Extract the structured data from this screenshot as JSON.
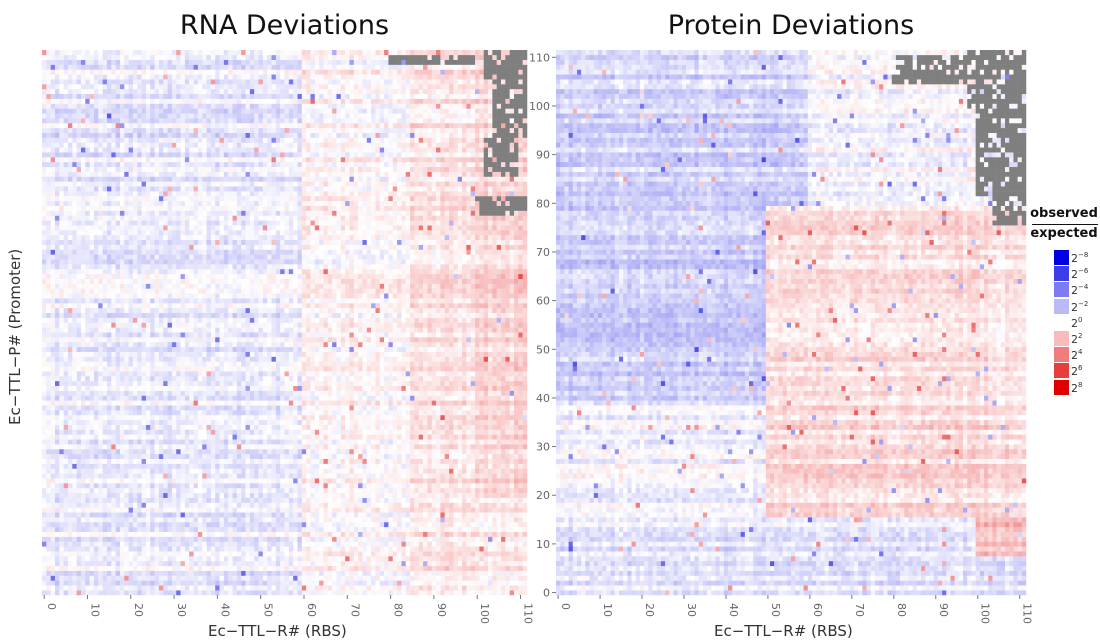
{
  "chart_data": [
    {
      "type": "heatmap",
      "title": "RNA Deviations",
      "xlabel": "Ec−TTL−R# (RBS)",
      "ylabel": "Ec−TTL−P# (Promoter)",
      "xlim": [
        0,
        112
      ],
      "ylim": [
        0,
        112
      ],
      "x_ticks": [
        0,
        10,
        20,
        30,
        40,
        50,
        60,
        70,
        80,
        90,
        100,
        110
      ],
      "y_ticks": [],
      "value_unit": "log2(observed/expected)",
      "missing_color": "#7f7f7f",
      "regions": [
        {
          "x": [
            0,
            60
          ],
          "y": [
            0,
            112
          ],
          "log2": -0.6
        },
        {
          "x": [
            60,
            85
          ],
          "y": [
            0,
            112
          ],
          "log2": 0.3
        },
        {
          "x": [
            85,
            100
          ],
          "y": [
            0,
            112
          ],
          "log2": 0.8
        },
        {
          "x": [
            100,
            112
          ],
          "y": [
            0,
            112
          ],
          "log2": 1.3
        },
        {
          "x": [
            100,
            112
          ],
          "y": [
            0,
            20
          ],
          "log2": 0.6
        }
      ],
      "missing_regions": [
        {
          "x": [
            102,
            112
          ],
          "y": [
            106,
            112
          ]
        },
        {
          "x": [
            104,
            112
          ],
          "y": [
            94,
            106
          ]
        },
        {
          "x": [
            102,
            110
          ],
          "y": [
            86,
            94
          ]
        },
        {
          "x": [
            100,
            112
          ],
          "y": [
            78,
            82
          ]
        },
        {
          "x": [
            80,
            100
          ],
          "y": [
            109,
            111
          ]
        }
      ]
    },
    {
      "type": "heatmap",
      "title": "Protein Deviations",
      "xlabel": "Ec−TTL−R# (RBS)",
      "ylabel": "",
      "xlim": [
        0,
        112
      ],
      "ylim": [
        0,
        112
      ],
      "x_ticks": [
        0,
        10,
        20,
        30,
        40,
        50,
        60,
        70,
        80,
        90,
        100,
        110
      ],
      "y_ticks": [
        0,
        10,
        20,
        30,
        40,
        50,
        60,
        70,
        80,
        90,
        100,
        110
      ],
      "value_unit": "log2(observed/expected)",
      "missing_color": "#7f7f7f",
      "regions": [
        {
          "x": [
            0,
            112
          ],
          "y": [
            0,
            16
          ],
          "log2": -0.7
        },
        {
          "x": [
            0,
            50
          ],
          "y": [
            16,
            40
          ],
          "log2": -0.3
        },
        {
          "x": [
            50,
            112
          ],
          "y": [
            16,
            40
          ],
          "log2": 1.2
        },
        {
          "x": [
            0,
            50
          ],
          "y": [
            40,
            80
          ],
          "log2": -1.6
        },
        {
          "x": [
            50,
            112
          ],
          "y": [
            40,
            80
          ],
          "log2": 0.9
        },
        {
          "x": [
            0,
            60
          ],
          "y": [
            80,
            112
          ],
          "log2": -1.4
        },
        {
          "x": [
            60,
            112
          ],
          "y": [
            80,
            112
          ],
          "log2": -0.2
        },
        {
          "x": [
            100,
            112
          ],
          "y": [
            8,
            16
          ],
          "log2": 2.2
        }
      ],
      "missing_regions": [
        {
          "x": [
            98,
            112
          ],
          "y": [
            100,
            112
          ]
        },
        {
          "x": [
            100,
            112
          ],
          "y": [
            82,
            100
          ]
        },
        {
          "x": [
            104,
            112
          ],
          "y": [
            76,
            82
          ]
        },
        {
          "x": [
            80,
            98
          ],
          "y": [
            105,
            111
          ]
        }
      ]
    }
  ],
  "legend": {
    "numerator": "observed",
    "denominator": "expected",
    "items": [
      {
        "exp": "−8",
        "color": "#0000e0"
      },
      {
        "exp": "−6",
        "color": "#3d3de8"
      },
      {
        "exp": "−4",
        "color": "#7c7cf0"
      },
      {
        "exp": "−2",
        "color": "#babaf8"
      },
      {
        "exp": "0",
        "color": "#ffffff"
      },
      {
        "exp": "2",
        "color": "#f8baba"
      },
      {
        "exp": "4",
        "color": "#f07c7c"
      },
      {
        "exp": "6",
        "color": "#e83d3d"
      },
      {
        "exp": "8",
        "color": "#e00000"
      }
    ]
  }
}
